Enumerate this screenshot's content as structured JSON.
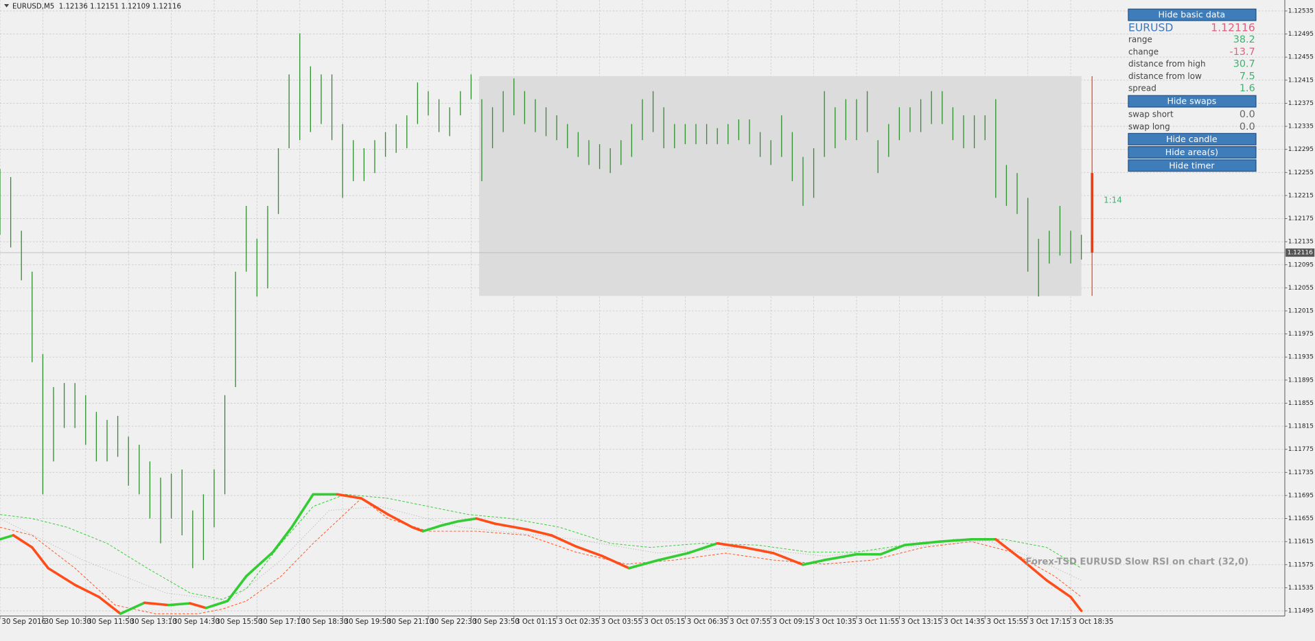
{
  "chart_data": {
    "type": "ohlc",
    "title": "EURUSD,M5  1.12136 1.12151 1.12109 1.12116",
    "xlim": [
      0,
      480
    ],
    "xticks": [
      {
        "value": 0,
        "label": "30 Sep 2016"
      },
      {
        "value": 16,
        "label": "30 Sep 10:30"
      },
      {
        "value": 32,
        "label": "30 Sep 11:50"
      },
      {
        "value": 48,
        "label": "30 Sep 13:10"
      },
      {
        "value": 64,
        "label": "30 Sep 14:30"
      },
      {
        "value": 80,
        "label": "30 Sep 15:50"
      },
      {
        "value": 96,
        "label": "30 Sep 17:10"
      },
      {
        "value": 112,
        "label": "30 Sep 18:30"
      },
      {
        "value": 128,
        "label": "30 Sep 19:50"
      },
      {
        "value": 144,
        "label": "30 Sep 21:10"
      },
      {
        "value": 160,
        "label": "30 Sep 22:30"
      },
      {
        "value": 176,
        "label": "30 Sep 23:50"
      },
      {
        "value": 192,
        "label": "3 Oct 01:15"
      },
      {
        "value": 208,
        "label": "3 Oct 02:35"
      },
      {
        "value": 224,
        "label": "3 Oct 03:55"
      },
      {
        "value": 240,
        "label": "3 Oct 05:15"
      },
      {
        "value": 256,
        "label": "3 Oct 06:35"
      },
      {
        "value": 272,
        "label": "3 Oct 07:55"
      },
      {
        "value": 288,
        "label": "3 Oct 09:15"
      },
      {
        "value": 304,
        "label": "3 Oct 10:35"
      },
      {
        "value": 320,
        "label": "3 Oct 11:55"
      },
      {
        "value": 336,
        "label": "3 Oct 13:15"
      },
      {
        "value": 352,
        "label": "3 Oct 14:35"
      },
      {
        "value": 368,
        "label": "3 Oct 15:55"
      },
      {
        "value": 384,
        "label": "3 Oct 17:15"
      },
      {
        "value": 400,
        "label": "3 Oct 18:35"
      }
    ],
    "ylim": [
      1.11486,
      1.12554
    ],
    "yticks": [
      1.12535,
      1.12495,
      1.12455,
      1.12415,
      1.12375,
      1.12335,
      1.12295,
      1.12255,
      1.12215,
      1.12175,
      1.12135,
      1.12095,
      1.12055,
      1.12015,
      1.11975,
      1.11935,
      1.11895,
      1.11855,
      1.11815,
      1.11775,
      1.11735,
      1.11695,
      1.11655,
      1.11615,
      1.11575,
      1.11535,
      1.11495
    ],
    "grid": true,
    "color": "#2f8f2f",
    "x": [
      0,
      4,
      8,
      12,
      16,
      20,
      24,
      28,
      32,
      36,
      40,
      44,
      48,
      52,
      56,
      60,
      64,
      68,
      72,
      76,
      80,
      84,
      88,
      92,
      96,
      100,
      104,
      108,
      112,
      116,
      120,
      124,
      128,
      132,
      136,
      140,
      144,
      148,
      152,
      156,
      160,
      164,
      168,
      172,
      176,
      180,
      184,
      188,
      192,
      196,
      200,
      204,
      208,
      212,
      216,
      220,
      224,
      228,
      232,
      236,
      240,
      244,
      248,
      252,
      256,
      260,
      264,
      268,
      272,
      276,
      280,
      284,
      288,
      292,
      296,
      300,
      304,
      308,
      312,
      316,
      320,
      324,
      328,
      332,
      336,
      340,
      344,
      348,
      352,
      356,
      360,
      364,
      368,
      372,
      376,
      380,
      384,
      388,
      392,
      396,
      400,
      404
    ],
    "high": [
      1.12261,
      1.12247,
      1.12154,
      1.12083,
      1.1194,
      1.11883,
      1.1189,
      1.1189,
      1.11869,
      1.1184,
      1.11826,
      1.11833,
      1.11797,
      1.11783,
      1.11754,
      1.11726,
      1.11733,
      1.1174,
      1.11669,
      1.11697,
      1.1174,
      1.11869,
      1.12083,
      1.12197,
      1.1214,
      1.12197,
      1.12297,
      1.12425,
      1.12496,
      1.12439,
      1.12425,
      1.12425,
      1.12339,
      1.12311,
      1.12297,
      1.12311,
      1.12325,
      1.12339,
      1.12354,
      1.12411,
      1.12396,
      1.12382,
      1.12368,
      1.12396,
      1.12425,
      1.12382,
      1.12368,
      1.12396,
      1.12418,
      1.12396,
      1.12382,
      1.12368,
      1.12354,
      1.12339,
      1.12325,
      1.12311,
      1.12304,
      1.12297,
      1.12311,
      1.12339,
      1.12382,
      1.12396,
      1.12368,
      1.12339,
      1.12339,
      1.12339,
      1.12339,
      1.12332,
      1.12339,
      1.12347,
      1.12347,
      1.12325,
      1.12311,
      1.12354,
      1.12325,
      1.12282,
      1.12297,
      1.12396,
      1.12368,
      1.12382,
      1.12382,
      1.12396,
      1.12311,
      1.12339,
      1.12368,
      1.12368,
      1.12382,
      1.12396,
      1.12396,
      1.12368,
      1.12354,
      1.12354,
      1.12354,
      1.12382,
      1.12268,
      1.12254,
      1.12211,
      1.1214,
      1.12154,
      1.12197,
      1.12154,
      1.12147
    ],
    "low": [
      1.12147,
      1.12125,
      1.12068,
      1.11926,
      1.11697,
      1.11754,
      1.11812,
      1.11812,
      1.11783,
      1.11754,
      1.11754,
      1.11762,
      1.11712,
      1.11697,
      1.11655,
      1.11612,
      1.11655,
      1.11626,
      1.11569,
      1.11583,
      1.1164,
      1.11697,
      1.11883,
      1.12083,
      1.1204,
      1.12054,
      1.12183,
      1.12297,
      1.12311,
      1.12325,
      1.12339,
      1.12311,
      1.12211,
      1.1224,
      1.1224,
      1.12254,
      1.12282,
      1.12289,
      1.12297,
      1.12339,
      1.12354,
      1.12325,
      1.12318,
      1.12354,
      1.12382,
      1.1224,
      1.12297,
      1.12325,
      1.12354,
      1.12339,
      1.12325,
      1.12318,
      1.12311,
      1.12297,
      1.12282,
      1.12268,
      1.12261,
      1.12254,
      1.12268,
      1.12282,
      1.12311,
      1.12325,
      1.12297,
      1.12297,
      1.12304,
      1.12304,
      1.12304,
      1.12304,
      1.12304,
      1.12311,
      1.12304,
      1.12282,
      1.12268,
      1.12282,
      1.1224,
      1.12197,
      1.12211,
      1.12282,
      1.12297,
      1.12311,
      1.12311,
      1.12325,
      1.12254,
      1.12282,
      1.12311,
      1.12325,
      1.12325,
      1.12339,
      1.12339,
      1.12311,
      1.12297,
      1.12297,
      1.12311,
      1.12211,
      1.12197,
      1.12183,
      1.12083,
      1.1204,
      1.12097,
      1.12111,
      1.12097,
      1.12104
    ],
    "area": {
      "x": [
        179,
        404
      ],
      "y": [
        1.12422,
        1.12041
      ],
      "color": "#dcdcdc"
    },
    "candle": {
      "x": 408,
      "high": 1.12422,
      "low": 1.12041,
      "open": 1.12254,
      "close": 1.12116,
      "color": "#e0401a",
      "label": "1:14"
    },
    "last_price": 1.12116,
    "annotation": "Forex-TSD EURUSD Slow RSI on chart (32,0)",
    "lines": [
      {
        "color": "#33cc33",
        "dash": "3,2",
        "width": 0.8,
        "x": [
          0,
          12,
          25,
          40,
          55,
          71,
          83,
          92,
          105,
          117,
          129,
          145,
          160,
          175,
          191,
          209,
          228,
          243,
          262,
          283,
          302,
          320,
          338,
          357,
          375,
          391,
          404
        ],
        "values": [
          1.11662,
          1.11655,
          1.1164,
          1.11612,
          1.11569,
          1.11526,
          1.11515,
          1.11533,
          1.11612,
          1.11676,
          1.11697,
          1.1169,
          1.11676,
          1.11662,
          1.11655,
          1.1164,
          1.11612,
          1.11605,
          1.11612,
          1.11609,
          1.11597,
          1.11597,
          1.11609,
          1.11619,
          1.11619,
          1.11605,
          1.11569
        ]
      },
      {
        "color": "#ff5522",
        "dash": "3,2",
        "width": 0.8,
        "x": [
          0,
          12,
          28,
          43,
          58,
          74,
          83,
          92,
          105,
          117,
          135,
          145,
          160,
          178,
          197,
          215,
          234,
          252,
          271,
          289,
          308,
          326,
          345,
          363,
          378,
          394,
          404
        ],
        "values": [
          1.1164,
          1.11626,
          1.11569,
          1.11505,
          1.1149,
          1.1149,
          1.11498,
          1.11512,
          1.11555,
          1.11612,
          1.1169,
          1.11655,
          1.11633,
          1.11633,
          1.11626,
          1.11597,
          1.11576,
          1.11583,
          1.11595,
          1.11583,
          1.11576,
          1.11583,
          1.11605,
          1.11615,
          1.11597,
          1.11555,
          1.11519
        ]
      },
      {
        "color": "#b4b4b4",
        "dash": "1,2",
        "width": 0.8,
        "x": [
          0,
          31,
          62,
          86,
          105,
          123,
          142,
          172,
          215,
          246,
          277,
          308,
          338,
          369,
          388,
          404
        ],
        "values": [
          1.11655,
          1.11583,
          1.11526,
          1.11512,
          1.11583,
          1.11669,
          1.11676,
          1.1164,
          1.11619,
          1.11595,
          1.11605,
          1.1159,
          1.11605,
          1.11617,
          1.11583,
          1.11548
        ]
      },
      {
        "color": "#33cc33",
        "color_down": "#ff4d1a",
        "width": 3,
        "x": [
          0,
          5,
          12,
          18,
          28,
          37,
          45,
          54,
          63,
          71,
          77,
          85,
          92,
          102,
          109,
          117,
          126,
          135,
          145,
          154,
          158,
          165,
          171,
          178,
          185,
          197,
          206,
          215,
          225,
          235,
          246,
          257,
          268,
          278,
          289,
          300,
          308,
          320,
          329,
          338,
          351,
          363,
          372,
          382,
          391,
          400,
          404
        ],
        "values": [
          1.11619,
          1.11626,
          1.11605,
          1.11569,
          1.1154,
          1.11519,
          1.1149,
          1.11509,
          1.11505,
          1.11508,
          1.115,
          1.11512,
          1.11555,
          1.11597,
          1.1164,
          1.11697,
          1.11697,
          1.1169,
          1.11662,
          1.1164,
          1.11633,
          1.11643,
          1.1165,
          1.11655,
          1.11646,
          1.11636,
          1.11626,
          1.11607,
          1.1159,
          1.11569,
          1.11583,
          1.11595,
          1.11612,
          1.11605,
          1.11595,
          1.11575,
          1.11583,
          1.11593,
          1.11593,
          1.11609,
          1.11615,
          1.11619,
          1.11619,
          1.11583,
          1.11548,
          1.11519,
          1.11495
        ]
      }
    ]
  },
  "panel": {
    "basic_button": "Hide basic data",
    "symbol": "EURUSD",
    "price": 1.12116,
    "rows": [
      [
        "range",
        38.2
      ],
      [
        "change",
        -13.7
      ],
      [
        "distance from high",
        30.7
      ],
      [
        "distance from low",
        7.5
      ],
      [
        "spread",
        1.6
      ]
    ],
    "swaps_button": "Hide swaps",
    "swaps": [
      [
        "swap short",
        {
          "value": 0,
          "label": "0.0"
        }
      ],
      [
        "swap long",
        {
          "value": 0,
          "label": "0.0"
        }
      ]
    ],
    "candle_button": "Hide candle",
    "area_button": "Hide area(s)",
    "timer_button": "Hide timer"
  }
}
